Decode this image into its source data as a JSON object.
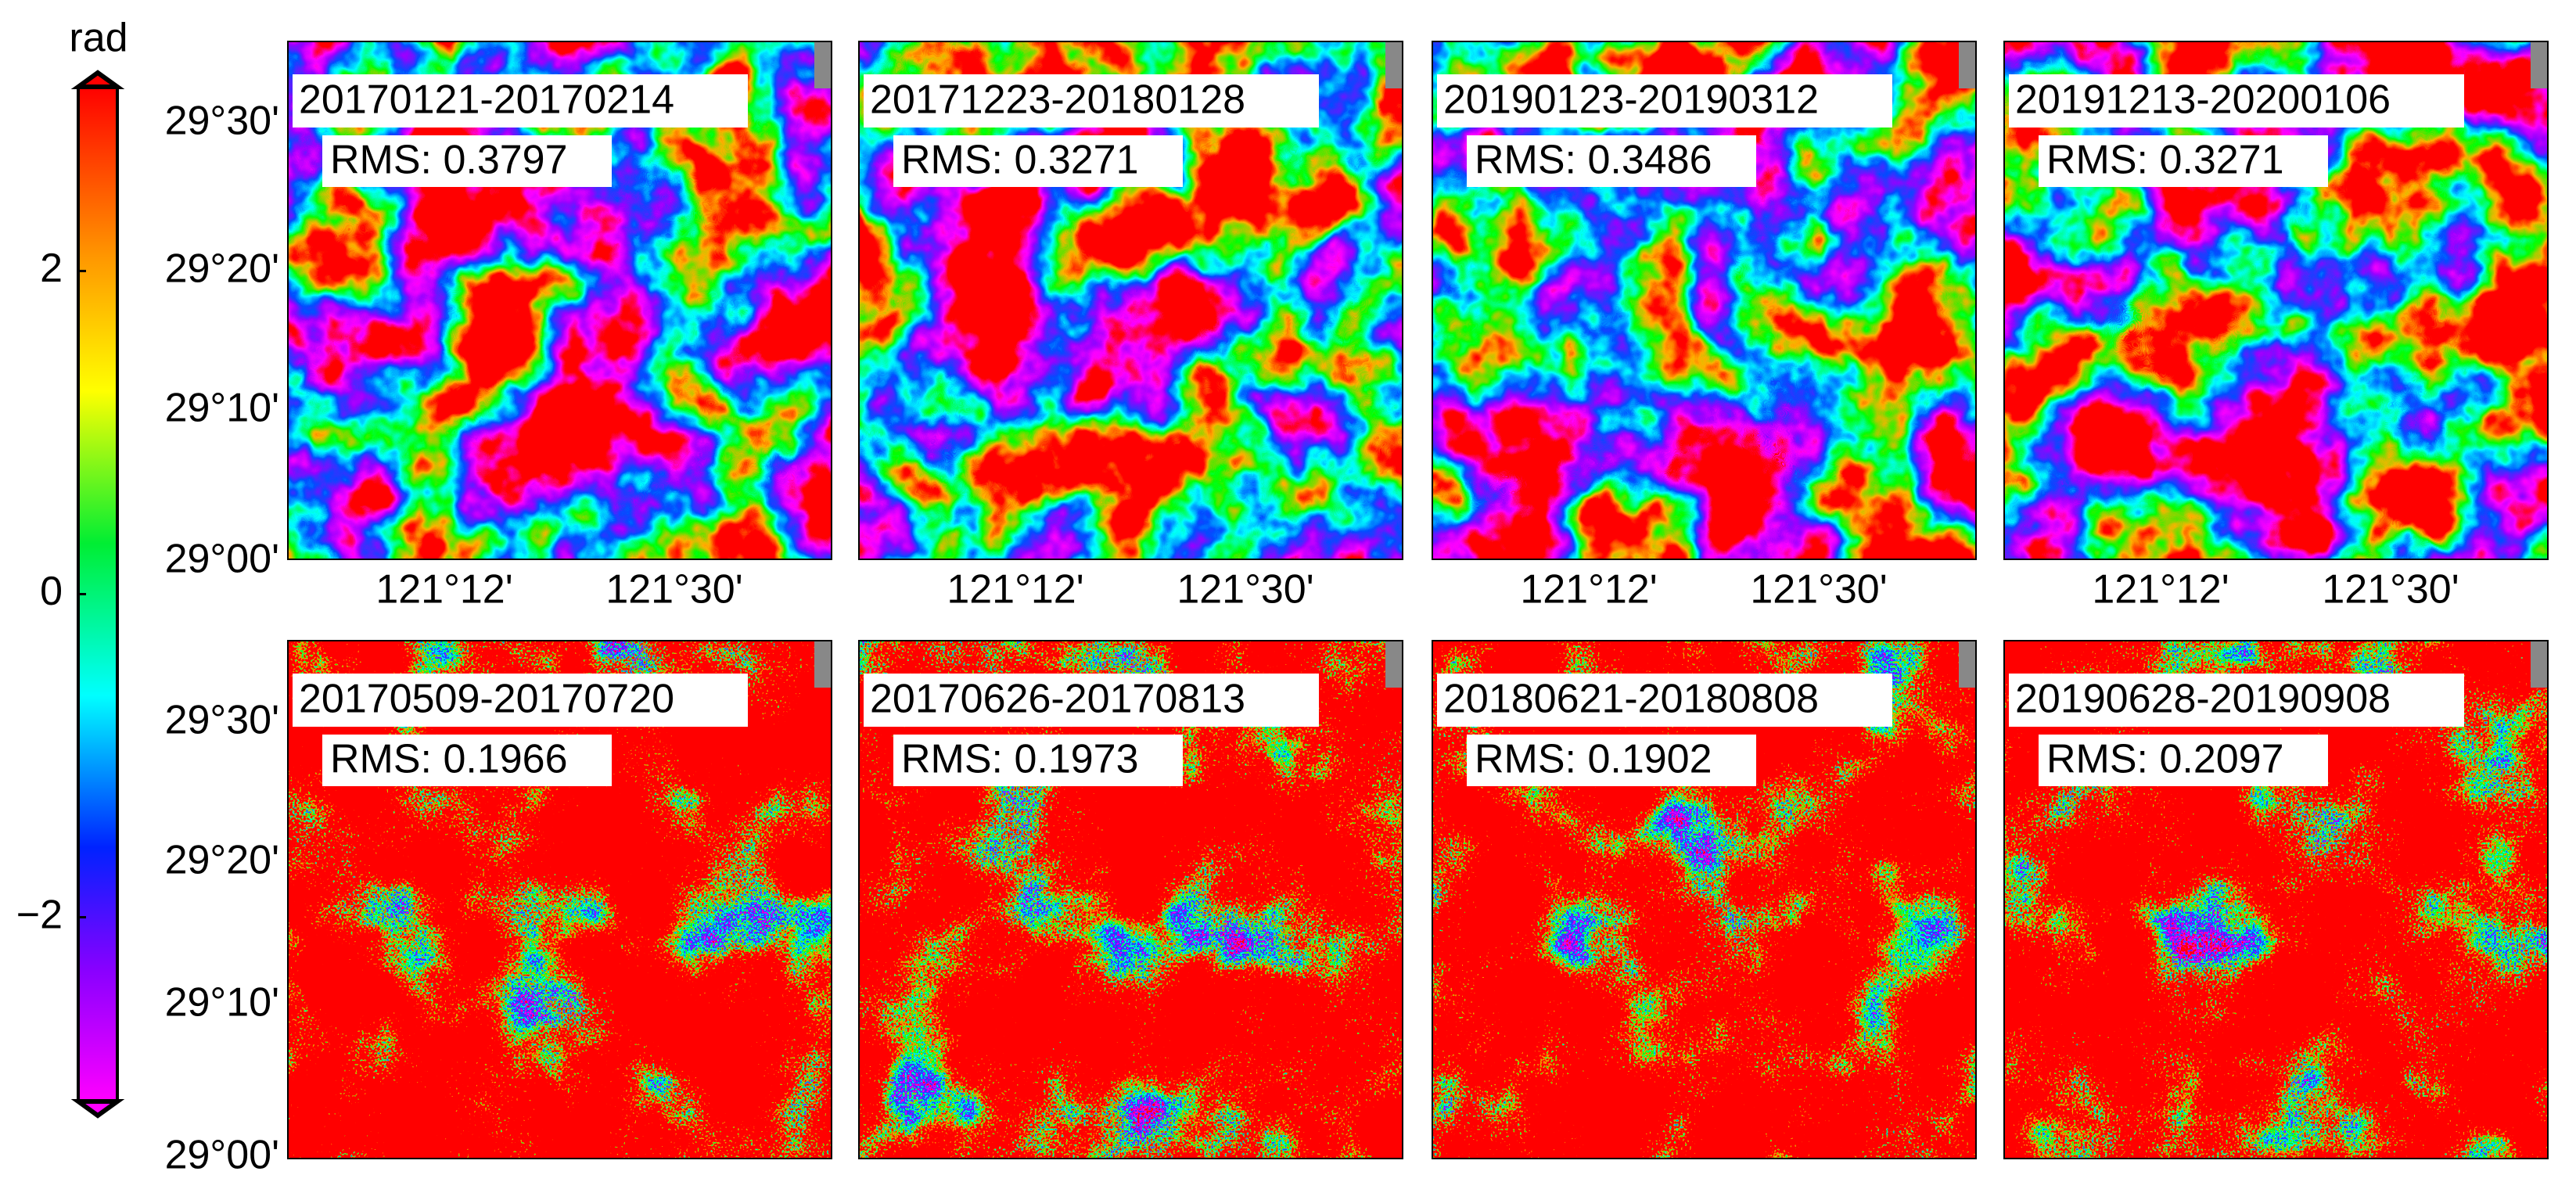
{
  "colorbar": {
    "label": "rad",
    "lim": [
      -3.14,
      3.14
    ],
    "ticks": [
      {
        "value": 2,
        "label": "2"
      },
      {
        "value": 0,
        "label": "0"
      },
      {
        "value": -2,
        "label": "−2"
      }
    ]
  },
  "lat_ticks": [
    "29°30'",
    "29°20'",
    "29°10'",
    "29°00'"
  ],
  "lon_ticks": [
    "121°12'",
    "121°30'"
  ],
  "panels": [
    {
      "dates": "20170121-20170214",
      "rms": "RMS: 0.3797"
    },
    {
      "dates": "20171223-20180128",
      "rms": "RMS: 0.3271"
    },
    {
      "dates": "20190123-20190312",
      "rms": "RMS: 0.3486"
    },
    {
      "dates": "20191213-20200106",
      "rms": "RMS: 0.3271"
    },
    {
      "dates": "20170509-20170720",
      "rms": "RMS: 0.1966"
    },
    {
      "dates": "20170626-20170813",
      "rms": "RMS: 0.1973"
    },
    {
      "dates": "20180621-20180808",
      "rms": "RMS: 0.1902"
    },
    {
      "dates": "20190628-20190908",
      "rms": "RMS: 0.2097"
    }
  ]
}
